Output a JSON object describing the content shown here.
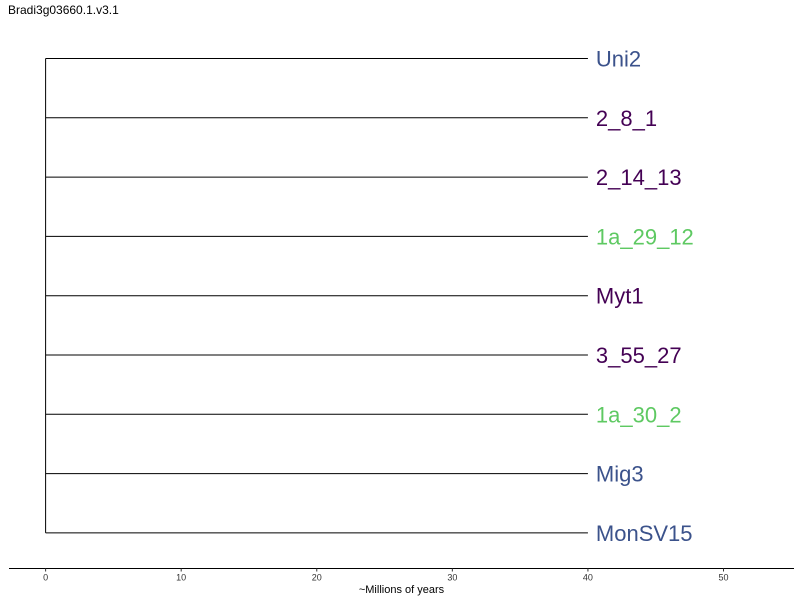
{
  "title": "Bradi3g03660.1.v3.1",
  "tree": {
    "tips": [
      {
        "label": "Uni2",
        "color": "#3b528b"
      },
      {
        "label": "2_8_1",
        "color": "#440154"
      },
      {
        "label": "2_14_13",
        "color": "#440154"
      },
      {
        "label": "1a_29_12",
        "color": "#5ec962"
      },
      {
        "label": "Myt1",
        "color": "#440154"
      },
      {
        "label": "3_55_27",
        "color": "#440154"
      },
      {
        "label": "1a_30_2",
        "color": "#5ec962"
      },
      {
        "label": "Mig3",
        "color": "#3b528b"
      },
      {
        "label": "MonSV15",
        "color": "#3b528b"
      }
    ],
    "branch_length": 40,
    "branch_color": "#000000"
  },
  "axis": {
    "title": "~Millions of years",
    "ticks": [
      0,
      10,
      20,
      30,
      40,
      50
    ],
    "range": [
      -2.7,
      55.2
    ]
  }
}
